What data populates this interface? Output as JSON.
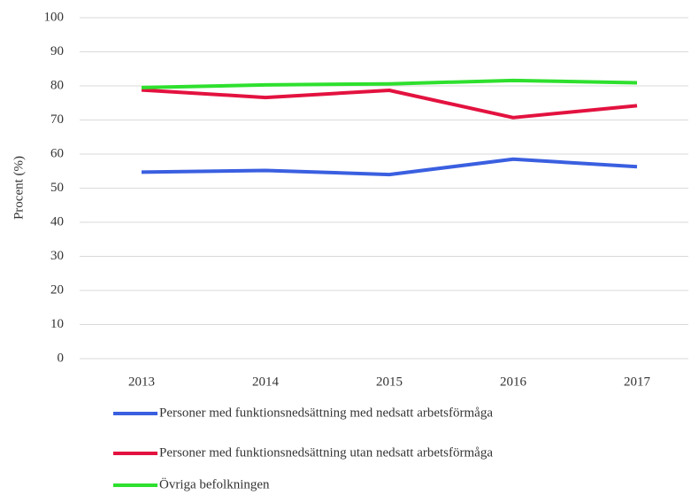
{
  "chart_data": {
    "type": "line",
    "y_label": "Procent (%)",
    "categories": [
      "2013",
      "2014",
      "2015",
      "2016",
      "2017"
    ],
    "series": [
      {
        "name": "Personer med funktionsnedsättning med nedsatt arbetsförmåga",
        "color": "#3a5fe0",
        "values": [
          54.7,
          55.2,
          54.0,
          58.5,
          56.3
        ]
      },
      {
        "name": "Personer med funktionsnedsättning utan nedsatt arbetsförmåga",
        "color": "#e3123f",
        "values": [
          78.8,
          76.6,
          78.7,
          70.7,
          74.2
        ]
      },
      {
        "name": "Övriga befolkningen",
        "color": "#2ee02e",
        "values": [
          79.5,
          80.3,
          80.6,
          81.6,
          80.9
        ]
      }
    ],
    "ylim": [
      0,
      100
    ],
    "yticks": [
      0,
      10,
      20,
      30,
      40,
      50,
      60,
      70,
      80,
      90,
      100
    ],
    "grid": true
  }
}
